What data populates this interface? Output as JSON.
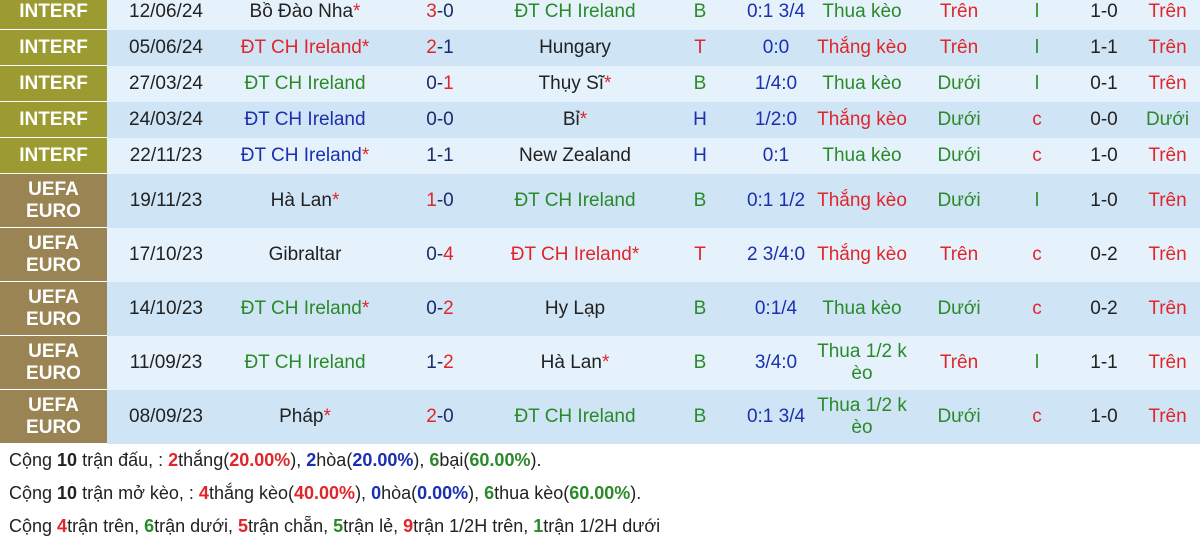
{
  "colors": {
    "win": "#e0262b",
    "loss": "#2a8a2a",
    "draw": "#1b2fb0",
    "interf_bg": "#9c9b32",
    "euro_bg": "#9a8453"
  },
  "matches": [
    {
      "comp": "INTERF",
      "date": "12/06/24",
      "home": "Bồ Đào Nha",
      "home_star": "*",
      "home_cls": "dark",
      "hg": "3",
      "ag": "0",
      "away": "ĐT CH Ireland",
      "away_star": "",
      "away_cls": "green",
      "res": "B",
      "hcap": "0:1 3/4",
      "keo": "Thua kèo",
      "ou": "Trên",
      "lc": "l",
      "ht": "1-0",
      "htou": "Trên"
    },
    {
      "comp": "INTERF",
      "date": "05/06/24",
      "home": "ĐT CH Ireland",
      "home_star": "*",
      "home_cls": "red",
      "hg": "2",
      "ag": "1",
      "away": "Hungary",
      "away_star": "",
      "away_cls": "dark",
      "res": "T",
      "hcap": "0:0",
      "keo": "Thắng kèo",
      "ou": "Trên",
      "lc": "l",
      "ht": "1-1",
      "htou": "Trên"
    },
    {
      "comp": "INTERF",
      "date": "27/03/24",
      "home": "ĐT CH Ireland",
      "home_star": "",
      "home_cls": "green",
      "hg": "0",
      "ag": "1",
      "away": "Thụy Sĩ",
      "away_star": "*",
      "away_cls": "dark",
      "res": "B",
      "hcap": "1/4:0",
      "keo": "Thua kèo",
      "ou": "Dưới",
      "lc": "l",
      "ht": "0-1",
      "htou": "Trên"
    },
    {
      "comp": "INTERF",
      "date": "24/03/24",
      "home": "ĐT CH Ireland",
      "home_star": "",
      "home_cls": "blue",
      "hg": "0",
      "ag": "0",
      "away": "Bỉ",
      "away_star": "*",
      "away_cls": "dark",
      "res": "H",
      "hcap": "1/2:0",
      "keo": "Thắng kèo",
      "ou": "Dưới",
      "lc": "c",
      "ht": "0-0",
      "htou": "Dưới"
    },
    {
      "comp": "INTERF",
      "date": "22/11/23",
      "home": "ĐT CH Ireland",
      "home_star": "*",
      "home_cls": "blue",
      "hg": "1",
      "ag": "1",
      "away": "New Zealand",
      "away_star": "",
      "away_cls": "dark",
      "res": "H",
      "hcap": "0:1",
      "keo": "Thua kèo",
      "ou": "Dưới",
      "lc": "c",
      "ht": "1-0",
      "htou": "Trên"
    },
    {
      "comp": "UEFA EURO",
      "date": "19/11/23",
      "home": "Hà Lan",
      "home_star": "*",
      "home_cls": "dark",
      "hg": "1",
      "ag": "0",
      "away": "ĐT CH Ireland",
      "away_star": "",
      "away_cls": "green",
      "res": "B",
      "hcap": "0:1 1/2",
      "keo": "Thắng kèo",
      "ou": "Dưới",
      "lc": "l",
      "ht": "1-0",
      "htou": "Trên"
    },
    {
      "comp": "UEFA EURO",
      "date": "17/10/23",
      "home": "Gibraltar",
      "home_star": "",
      "home_cls": "dark",
      "hg": "0",
      "ag": "4",
      "away": "ĐT CH Ireland",
      "away_star": "*",
      "away_cls": "red",
      "res": "T",
      "hcap": "2 3/4:0",
      "keo": "Thắng kèo",
      "ou": "Trên",
      "lc": "c",
      "ht": "0-2",
      "htou": "Trên"
    },
    {
      "comp": "UEFA EURO",
      "date": "14/10/23",
      "home": "ĐT CH Ireland",
      "home_star": "*",
      "home_cls": "green",
      "hg": "0",
      "ag": "2",
      "away": "Hy Lạp",
      "away_star": "",
      "away_cls": "dark",
      "res": "B",
      "hcap": "0:1/4",
      "keo": "Thua kèo",
      "ou": "Dưới",
      "lc": "c",
      "ht": "0-2",
      "htou": "Trên"
    },
    {
      "comp": "UEFA EURO",
      "date": "11/09/23",
      "home": "ĐT CH Ireland",
      "home_star": "",
      "home_cls": "green",
      "hg": "1",
      "ag": "2",
      "away": "Hà Lan",
      "away_star": "*",
      "away_cls": "dark",
      "res": "B",
      "hcap": "3/4:0",
      "keo": "Thua 1/2 kèo",
      "ou": "Trên",
      "lc": "l",
      "ht": "1-1",
      "htou": "Trên"
    },
    {
      "comp": "UEFA EURO",
      "date": "08/09/23",
      "home": "Pháp",
      "home_star": "*",
      "home_cls": "dark",
      "hg": "2",
      "ag": "0",
      "away": "ĐT CH Ireland",
      "away_star": "",
      "away_cls": "green",
      "res": "B",
      "hcap": "0:1 3/4",
      "keo": "Thua 1/2 kèo",
      "ou": "Dưới",
      "lc": "c",
      "ht": "1-0",
      "htou": "Trên"
    }
  ],
  "summary": {
    "line1": [
      [
        "dark",
        "Cộng "
      ],
      [
        "bold",
        "10"
      ],
      [
        "dark",
        " trận đấu, : "
      ],
      [
        "red",
        "2"
      ],
      [
        "dark",
        "thắng("
      ],
      [
        "red",
        "20.00%"
      ],
      [
        "dark",
        "), "
      ],
      [
        "blue",
        "2"
      ],
      [
        "dark",
        "hòa("
      ],
      [
        "blue",
        "20.00%"
      ],
      [
        "dark",
        "), "
      ],
      [
        "green",
        "6"
      ],
      [
        "dark",
        "bại("
      ],
      [
        "green",
        "60.00%"
      ],
      [
        "dark",
        ")."
      ]
    ],
    "line2": [
      [
        "dark",
        "Cộng "
      ],
      [
        "bold",
        "10"
      ],
      [
        "dark",
        " trận mở kèo, : "
      ],
      [
        "red",
        "4"
      ],
      [
        "dark",
        "thắng kèo("
      ],
      [
        "red",
        "40.00%"
      ],
      [
        "dark",
        "), "
      ],
      [
        "blue",
        "0"
      ],
      [
        "dark",
        "hòa("
      ],
      [
        "blue",
        "0.00%"
      ],
      [
        "dark",
        "), "
      ],
      [
        "green",
        "6"
      ],
      [
        "dark",
        "thua kèo("
      ],
      [
        "green",
        "60.00%"
      ],
      [
        "dark",
        ")."
      ]
    ],
    "line3": [
      [
        "dark",
        "Cộng "
      ],
      [
        "red",
        "4"
      ],
      [
        "dark",
        "trận trên, "
      ],
      [
        "green",
        "6"
      ],
      [
        "dark",
        "trận dưới, "
      ],
      [
        "red",
        "5"
      ],
      [
        "dark",
        "trận chẵn, "
      ],
      [
        "green",
        "5"
      ],
      [
        "dark",
        "trận lẻ, "
      ],
      [
        "red",
        "9"
      ],
      [
        "dark",
        "trận 1/2H trên, "
      ],
      [
        "green",
        "1"
      ],
      [
        "dark",
        "trận 1/2H dưới"
      ]
    ]
  }
}
